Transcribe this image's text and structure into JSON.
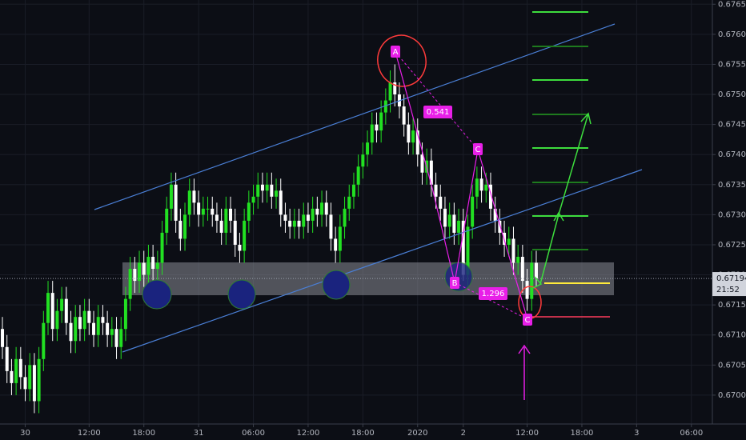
{
  "chart_data": {
    "type": "candlestick",
    "open": [
      0.6711,
      0.6708,
      0.6704,
      0.6702,
      0.6706,
      0.6703,
      0.6701,
      0.6705,
      0.6699,
      0.6706,
      0.6712,
      0.6717,
      0.6711,
      0.6714,
      0.6716,
      0.6712,
      0.6709,
      0.6713,
      0.6711,
      0.6714,
      0.6712,
      0.671,
      0.6713,
      0.6712,
      0.671,
      0.6711,
      0.6708,
      0.6711,
      0.6716,
      0.6721,
      0.6719,
      0.6722,
      0.672,
      0.6723,
      0.6721,
      0.6722,
      0.6727,
      0.6731,
      0.6735,
      0.6729,
      0.6726,
      0.673,
      0.6734,
      0.6732,
      0.673,
      0.6731,
      0.6731,
      0.673,
      0.6729,
      0.6727,
      0.6731,
      0.6729,
      0.6725,
      0.6724,
      0.6729,
      0.6732,
      0.6733,
      0.6735,
      0.6734,
      0.6735,
      0.6733,
      0.6734,
      0.673,
      0.6729,
      0.6728,
      0.6729,
      0.6728,
      0.673,
      0.6729,
      0.6731,
      0.673,
      0.6732,
      0.673,
      0.6726,
      0.6724,
      0.6728,
      0.6731,
      0.6733,
      0.6735,
      0.6738,
      0.674,
      0.6742,
      0.6745,
      0.6744,
      0.6747,
      0.6749,
      0.6752,
      0.675,
      0.6748,
      0.6745,
      0.6742,
      0.6744,
      0.674,
      0.6737,
      0.6739,
      0.6735,
      0.6733,
      0.6731,
      0.6728,
      0.673,
      0.6727,
      0.6729,
      0.672,
      0.6728,
      0.6733,
      0.6736,
      0.6734,
      0.6735,
      0.6731,
      0.6729,
      0.6727,
      0.6725,
      0.6726,
      0.6722,
      0.6723,
      0.6719,
      0.6716,
      0.6722
    ],
    "high": [
      0.6713,
      0.671,
      0.6706,
      0.6708,
      0.6708,
      0.6705,
      0.6707,
      0.6707,
      0.6708,
      0.6714,
      0.6719,
      0.6719,
      0.6716,
      0.6718,
      0.6718,
      0.6714,
      0.6715,
      0.6715,
      0.6716,
      0.6716,
      0.6714,
      0.6715,
      0.6715,
      0.6714,
      0.6713,
      0.6713,
      0.6713,
      0.6718,
      0.6723,
      0.6723,
      0.6724,
      0.6724,
      0.6725,
      0.6725,
      0.6724,
      0.6729,
      0.6733,
      0.6737,
      0.6737,
      0.6731,
      0.6732,
      0.6736,
      0.6736,
      0.6734,
      0.6733,
      0.6733,
      0.6733,
      0.6732,
      0.6731,
      0.6733,
      0.6733,
      0.6731,
      0.6727,
      0.6731,
      0.6734,
      0.6735,
      0.6737,
      0.6737,
      0.6737,
      0.6737,
      0.6736,
      0.6736,
      0.6732,
      0.6731,
      0.6731,
      0.6731,
      0.6732,
      0.6732,
      0.6733,
      0.6733,
      0.6734,
      0.6734,
      0.6732,
      0.6728,
      0.673,
      0.6733,
      0.6735,
      0.6737,
      0.674,
      0.6742,
      0.6744,
      0.6747,
      0.6747,
      0.6749,
      0.6751,
      0.6754,
      0.6755,
      0.6752,
      0.675,
      0.6747,
      0.6746,
      0.6746,
      0.6742,
      0.6741,
      0.6741,
      0.6737,
      0.6735,
      0.6733,
      0.6732,
      0.6732,
      0.6731,
      0.6731,
      0.673,
      0.6735,
      0.6738,
      0.6738,
      0.6737,
      0.6737,
      0.6733,
      0.6731,
      0.6729,
      0.6728,
      0.6728,
      0.6725,
      0.6725,
      0.6721,
      0.6724,
      0.6724
    ],
    "low": [
      0.6706,
      0.6702,
      0.67,
      0.67,
      0.6701,
      0.6699,
      0.6699,
      0.6697,
      0.6697,
      0.6704,
      0.671,
      0.6709,
      0.6709,
      0.6712,
      0.671,
      0.6707,
      0.6707,
      0.6709,
      0.6709,
      0.671,
      0.6708,
      0.6708,
      0.671,
      0.6708,
      0.6708,
      0.6706,
      0.6706,
      0.6709,
      0.6714,
      0.6717,
      0.6717,
      0.6718,
      0.6718,
      0.6719,
      0.6719,
      0.672,
      0.6725,
      0.6729,
      0.6727,
      0.6724,
      0.6724,
      0.6728,
      0.673,
      0.6728,
      0.6728,
      0.6729,
      0.6728,
      0.6727,
      0.6725,
      0.6725,
      0.6727,
      0.6723,
      0.6722,
      0.6722,
      0.6727,
      0.673,
      0.6731,
      0.6732,
      0.6732,
      0.6731,
      0.6731,
      0.6728,
      0.6727,
      0.6726,
      0.6726,
      0.6726,
      0.6726,
      0.6727,
      0.6727,
      0.6728,
      0.6728,
      0.6728,
      0.6724,
      0.6722,
      0.6722,
      0.6726,
      0.6729,
      0.6731,
      0.6733,
      0.6736,
      0.6738,
      0.674,
      0.6742,
      0.6742,
      0.6745,
      0.6747,
      0.6748,
      0.6746,
      0.6743,
      0.674,
      0.674,
      0.6738,
      0.6735,
      0.6735,
      0.6733,
      0.6731,
      0.6729,
      0.6726,
      0.6726,
      0.6725,
      0.6725,
      0.6719,
      0.6718,
      0.6726,
      0.6731,
      0.6732,
      0.6732,
      0.6729,
      0.6727,
      0.6725,
      0.6723,
      0.6723,
      0.672,
      0.672,
      0.6717,
      0.6714,
      0.6714,
      0.6718
    ],
    "close": [
      0.6708,
      0.6704,
      0.6702,
      0.6706,
      0.6703,
      0.6701,
      0.6705,
      0.6699,
      0.6706,
      0.6712,
      0.6717,
      0.6711,
      0.6714,
      0.6716,
      0.6712,
      0.6709,
      0.6713,
      0.6711,
      0.6714,
      0.6712,
      0.671,
      0.6713,
      0.6712,
      0.671,
      0.6711,
      0.6708,
      0.6711,
      0.6716,
      0.6721,
      0.6719,
      0.6722,
      0.672,
      0.6723,
      0.6721,
      0.6722,
      0.6727,
      0.6731,
      0.6735,
      0.6729,
      0.6726,
      0.673,
      0.6734,
      0.6732,
      0.673,
      0.6731,
      0.6731,
      0.673,
      0.6729,
      0.6727,
      0.6731,
      0.6729,
      0.6725,
      0.6724,
      0.6729,
      0.6732,
      0.6733,
      0.6735,
      0.6734,
      0.6735,
      0.6733,
      0.6734,
      0.673,
      0.6729,
      0.6728,
      0.6729,
      0.6728,
      0.673,
      0.6729,
      0.6731,
      0.673,
      0.6732,
      0.673,
      0.6726,
      0.6724,
      0.6728,
      0.6731,
      0.6733,
      0.6735,
      0.6738,
      0.674,
      0.6742,
      0.6745,
      0.6744,
      0.6747,
      0.6749,
      0.6752,
      0.675,
      0.6748,
      0.6745,
      0.6742,
      0.6744,
      0.674,
      0.6737,
      0.6739,
      0.6735,
      0.6733,
      0.6731,
      0.6728,
      0.673,
      0.6727,
      0.6729,
      0.672,
      0.6728,
      0.6733,
      0.6736,
      0.6734,
      0.6735,
      0.6731,
      0.6729,
      0.6727,
      0.6725,
      0.6726,
      0.6722,
      0.6723,
      0.6719,
      0.6716,
      0.6722,
      0.67194
    ],
    "up_color": "#22e022",
    "down_color": "#ffffff",
    "ylim": [
      0.66952,
      0.67657
    ],
    "yticks": [
      {
        "value": 0.6765,
        "label": "0.67650"
      },
      {
        "value": 0.676,
        "label": "0.67600"
      },
      {
        "value": 0.6755,
        "label": "0.67550"
      },
      {
        "value": 0.675,
        "label": "0.67500"
      },
      {
        "value": 0.6745,
        "label": "0.67450"
      },
      {
        "value": 0.674,
        "label": "0.67400"
      },
      {
        "value": 0.6735,
        "label": "0.67350"
      },
      {
        "value": 0.673,
        "label": "0.67300"
      },
      {
        "value": 0.6725,
        "label": "0.67250"
      },
      {
        "value": 0.672,
        "label": "0.67200"
      },
      {
        "value": 0.6715,
        "label": "0.67150"
      },
      {
        "value": 0.671,
        "label": "0.67100"
      },
      {
        "value": 0.6705,
        "label": "0.67050"
      },
      {
        "value": 0.67,
        "label": "0.67000"
      }
    ],
    "xlim": [
      -0.53,
      155.6
    ],
    "xticks": [
      {
        "value": 5,
        "label": "30"
      },
      {
        "value": 19,
        "label": "12:00"
      },
      {
        "value": 31,
        "label": "18:00"
      },
      {
        "value": 43,
        "label": "31"
      },
      {
        "value": 55,
        "label": "06:00"
      },
      {
        "value": 67,
        "label": "12:00"
      },
      {
        "value": 79,
        "label": "18:00"
      },
      {
        "value": 91,
        "label": "2020"
      },
      {
        "value": 101,
        "label": "2"
      },
      {
        "value": 115,
        "label": "12:00"
      },
      {
        "value": 127,
        "label": "18:00"
      },
      {
        "value": 139,
        "label": "3"
      },
      {
        "value": 151,
        "label": "06:00"
      }
    ],
    "grid": true,
    "last_price": {
      "value": 0.67194,
      "label": "0.67194"
    },
    "countdown": "21:52",
    "annotations": {
      "points": [
        "A",
        "B",
        "C",
        "C"
      ],
      "ratios": [
        "0.541",
        "1.296"
      ]
    }
  }
}
